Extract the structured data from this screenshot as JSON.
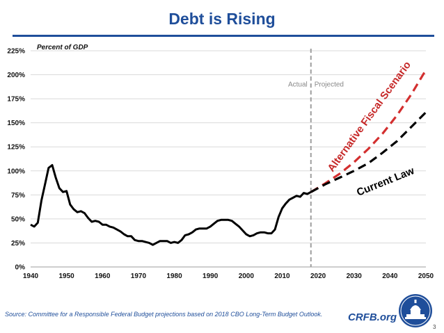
{
  "page": {
    "title": "Debt is Rising",
    "source": "Source: Committee for a Responsible Federal Budget projections based on 2018 CBO Long-Term Budget Outlook.",
    "brand": "CRFB.org",
    "page_number": "3"
  },
  "chart_data": {
    "type": "line",
    "title": "Debt is Rising",
    "ylabel": "Percent of GDP",
    "xlabel": "",
    "xlim": [
      1940,
      2050
    ],
    "ylim": [
      0,
      225
    ],
    "x_ticks": [
      "1940",
      "1950",
      "1960",
      "1970",
      "1980",
      "1990",
      "2000",
      "2010",
      "2020",
      "2030",
      "2040",
      "2050"
    ],
    "y_ticks": [
      "0%",
      "25%",
      "50%",
      "75%",
      "100%",
      "125%",
      "150%",
      "175%",
      "200%",
      "225%"
    ],
    "grid": "horizontal",
    "divider": {
      "x": 2018,
      "left_label": "Actual",
      "right_label": "Projected"
    },
    "annotations": {
      "alternative": "Alternative Fiscal Scenario",
      "current": "Current Law"
    },
    "series": [
      {
        "key": "actual",
        "color": "#000000",
        "style": "solid",
        "points": [
          [
            1940,
            44
          ],
          [
            1941,
            42
          ],
          [
            1942,
            46
          ],
          [
            1943,
            69
          ],
          [
            1944,
            86
          ],
          [
            1945,
            103
          ],
          [
            1946,
            106
          ],
          [
            1947,
            93
          ],
          [
            1948,
            82
          ],
          [
            1949,
            78
          ],
          [
            1950,
            79
          ],
          [
            1951,
            65
          ],
          [
            1952,
            60
          ],
          [
            1953,
            57
          ],
          [
            1954,
            58
          ],
          [
            1955,
            56
          ],
          [
            1956,
            51
          ],
          [
            1957,
            47
          ],
          [
            1958,
            48
          ],
          [
            1959,
            47
          ],
          [
            1960,
            44
          ],
          [
            1961,
            44
          ],
          [
            1962,
            42
          ],
          [
            1963,
            41
          ],
          [
            1964,
            39
          ],
          [
            1965,
            37
          ],
          [
            1966,
            34
          ],
          [
            1967,
            32
          ],
          [
            1968,
            32
          ],
          [
            1969,
            28
          ],
          [
            1970,
            27
          ],
          [
            1971,
            27
          ],
          [
            1972,
            26
          ],
          [
            1973,
            25
          ],
          [
            1974,
            23
          ],
          [
            1975,
            25
          ],
          [
            1976,
            27
          ],
          [
            1977,
            27
          ],
          [
            1978,
            27
          ],
          [
            1979,
            25
          ],
          [
            1980,
            26
          ],
          [
            1981,
            25
          ],
          [
            1982,
            28
          ],
          [
            1983,
            33
          ],
          [
            1984,
            34
          ],
          [
            1985,
            36
          ],
          [
            1986,
            39
          ],
          [
            1987,
            40
          ],
          [
            1988,
            40
          ],
          [
            1989,
            40
          ],
          [
            1990,
            42
          ],
          [
            1991,
            45
          ],
          [
            1992,
            48
          ],
          [
            1993,
            49
          ],
          [
            1994,
            49
          ],
          [
            1995,
            49
          ],
          [
            1996,
            48
          ],
          [
            1997,
            45
          ],
          [
            1998,
            42
          ],
          [
            1999,
            38
          ],
          [
            2000,
            34
          ],
          [
            2001,
            32
          ],
          [
            2002,
            33
          ],
          [
            2003,
            35
          ],
          [
            2004,
            36
          ],
          [
            2005,
            36
          ],
          [
            2006,
            35
          ],
          [
            2007,
            35
          ],
          [
            2008,
            39
          ],
          [
            2009,
            52
          ],
          [
            2010,
            61
          ],
          [
            2011,
            66
          ],
          [
            2012,
            70
          ],
          [
            2013,
            72
          ],
          [
            2014,
            74
          ],
          [
            2015,
            73
          ],
          [
            2016,
            77
          ],
          [
            2017,
            76
          ],
          [
            2018,
            78
          ]
        ]
      },
      {
        "key": "alternative",
        "color": "#d32f2f",
        "style": "dashed",
        "points": [
          [
            2018,
            78
          ],
          [
            2022,
            87
          ],
          [
            2026,
            97
          ],
          [
            2030,
            109
          ],
          [
            2034,
            123
          ],
          [
            2038,
            139
          ],
          [
            2042,
            158
          ],
          [
            2046,
            180
          ],
          [
            2050,
            205
          ]
        ]
      },
      {
        "key": "current",
        "color": "#000000",
        "style": "dashed",
        "points": [
          [
            2018,
            78
          ],
          [
            2022,
            86
          ],
          [
            2026,
            93
          ],
          [
            2030,
            100
          ],
          [
            2034,
            108
          ],
          [
            2038,
            119
          ],
          [
            2042,
            131
          ],
          [
            2046,
            146
          ],
          [
            2050,
            161
          ]
        ]
      }
    ]
  }
}
